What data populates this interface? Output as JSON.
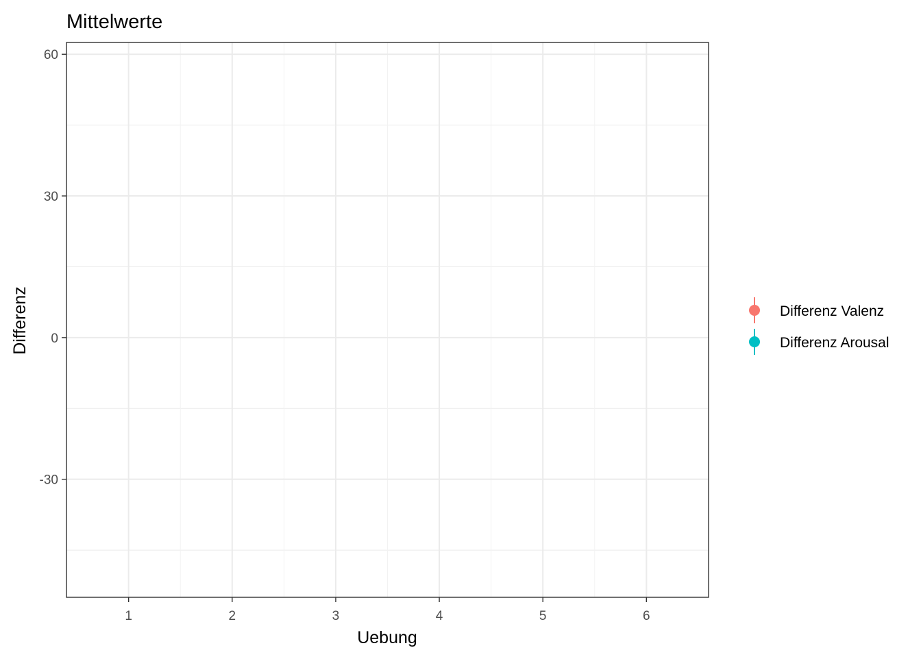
{
  "chart_data": {
    "type": "scatter",
    "title": "Mittelwerte",
    "xlabel": "Uebung",
    "ylabel": "Differenz",
    "x_ticks": [
      1,
      2,
      3,
      4,
      5,
      6
    ],
    "y_ticks": [
      60,
      30,
      0,
      -30
    ],
    "xlim": [
      0.4,
      6.6
    ],
    "ylim": [
      -55,
      62.5
    ],
    "grid": true,
    "legend_position": "right",
    "series": [
      {
        "name": "Differenz Valenz",
        "color": "#F8766D",
        "points": []
      },
      {
        "name": "Differenz Arousal",
        "color": "#00BFC4",
        "points": []
      }
    ]
  }
}
